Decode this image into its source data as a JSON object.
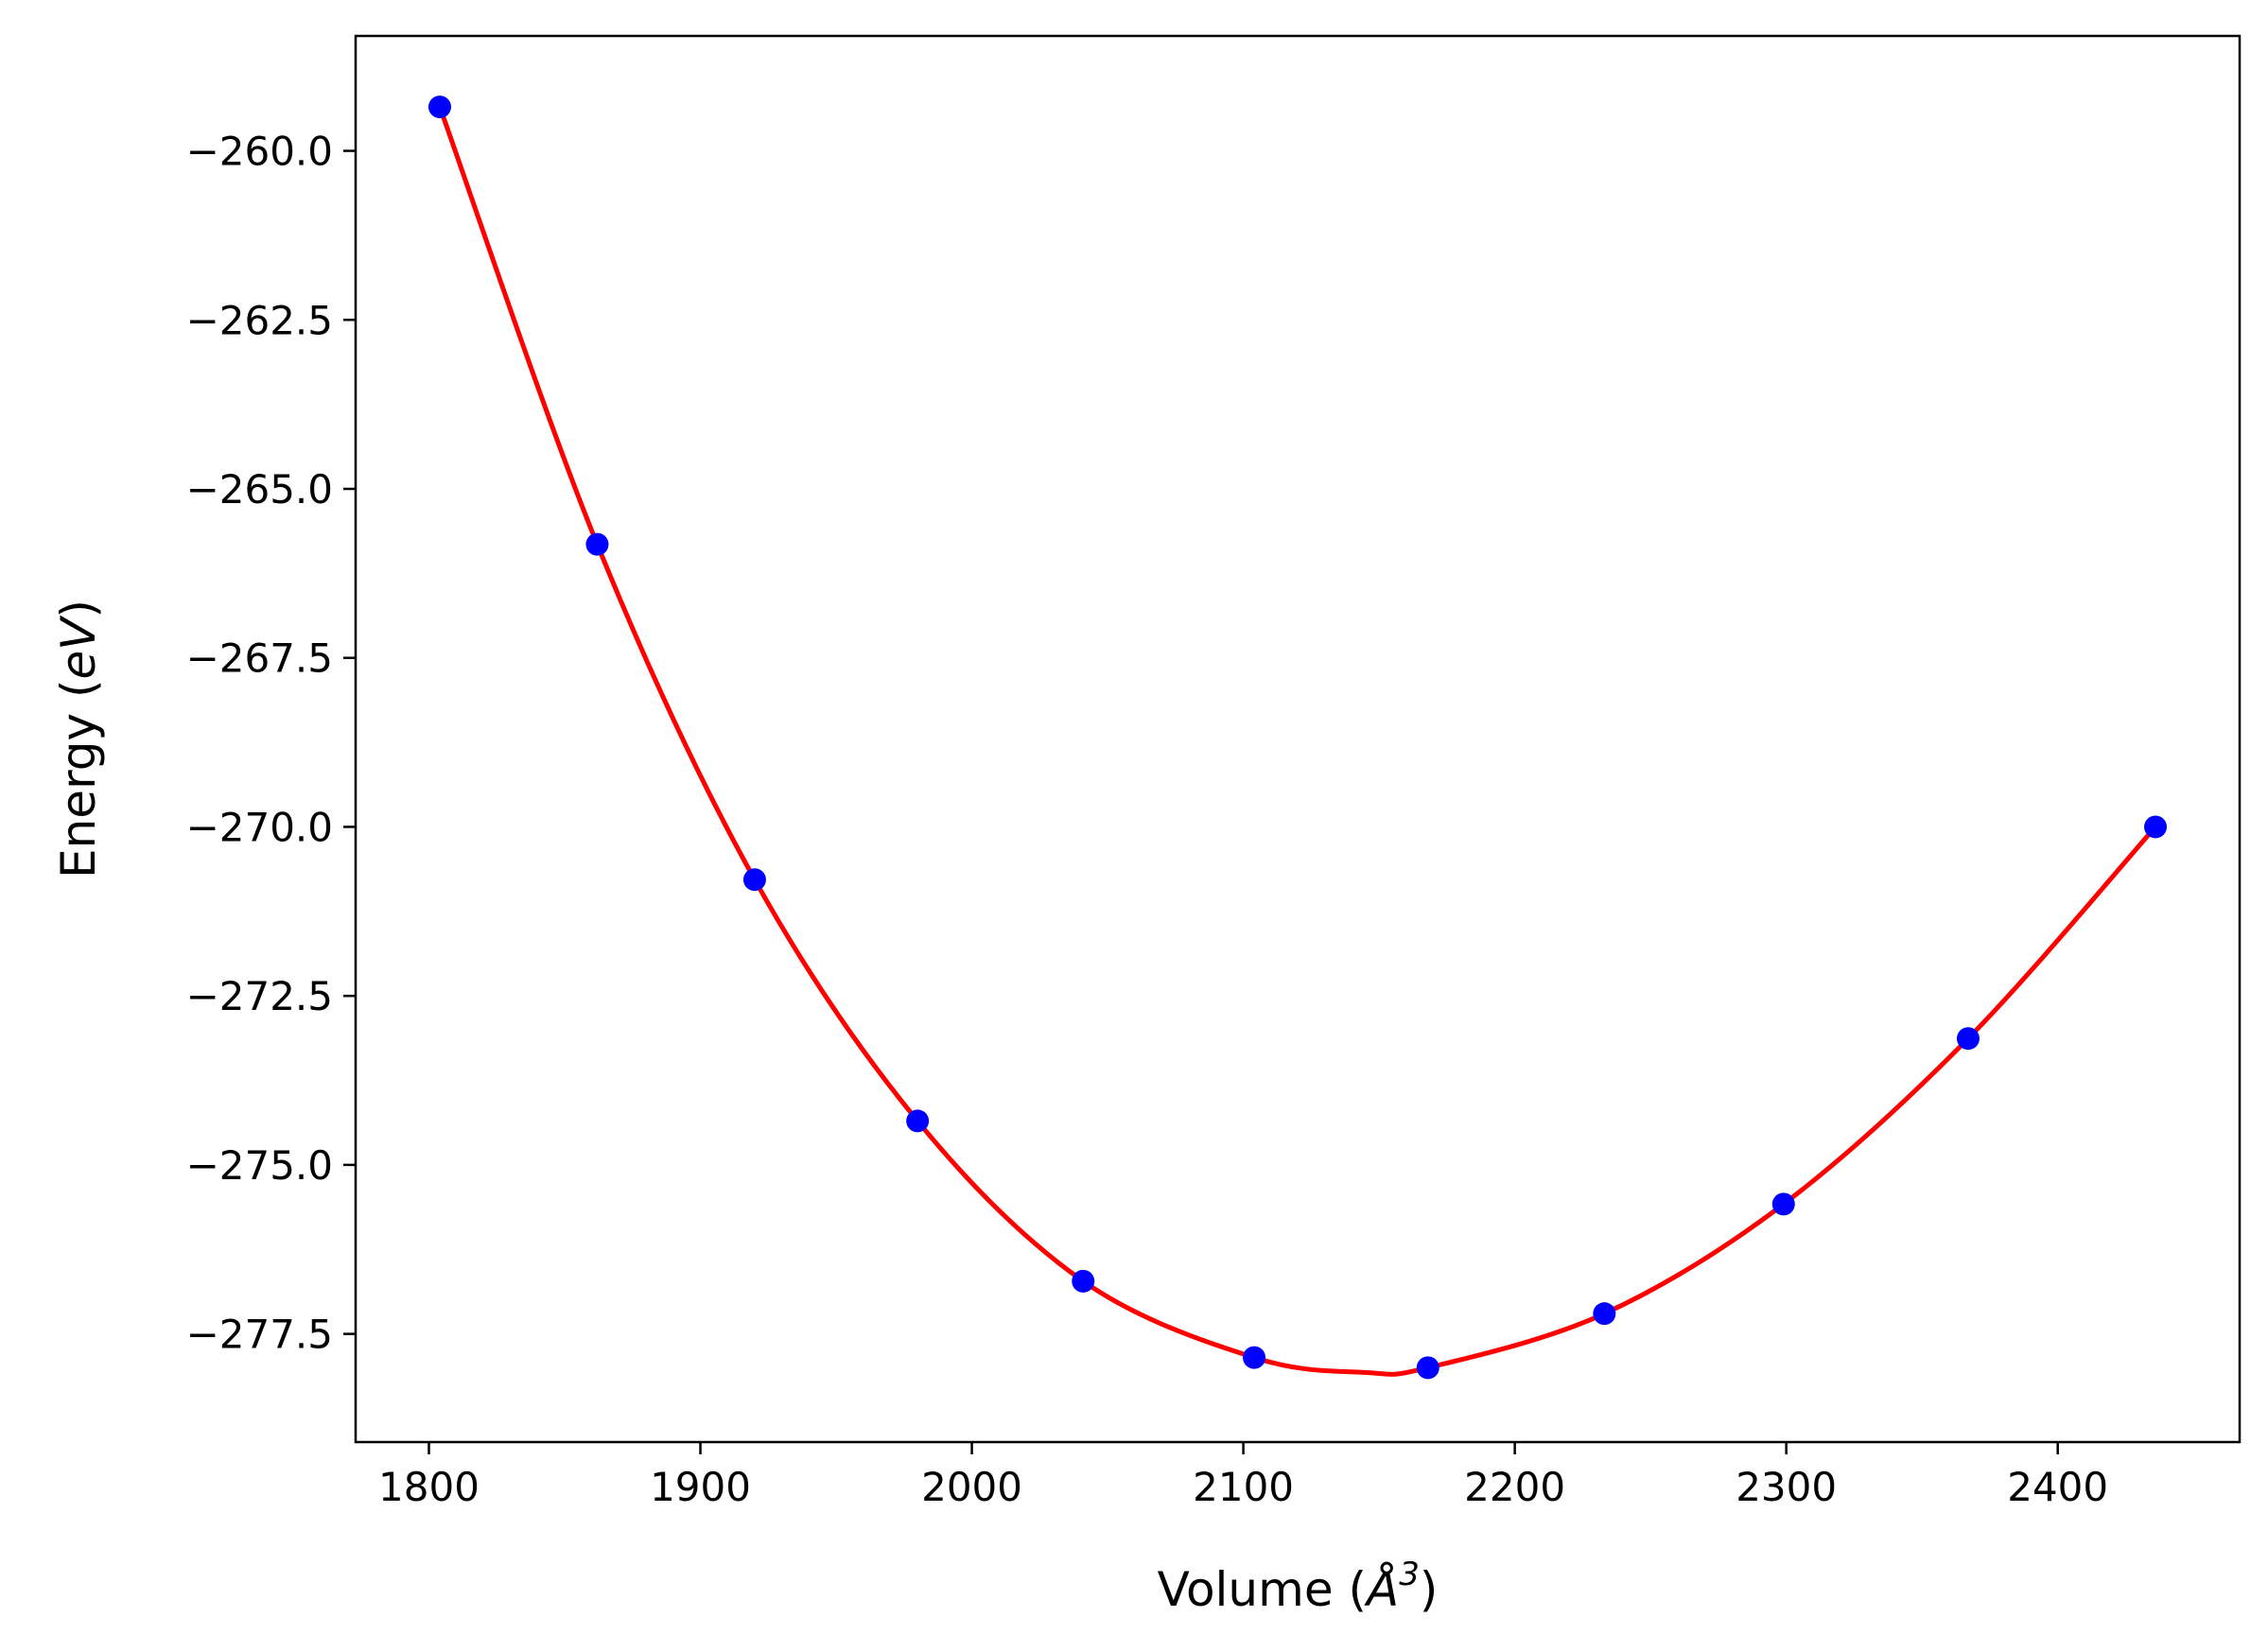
{
  "chart_data": {
    "type": "scatter",
    "title": "",
    "xlabel": "Volume (Å^3)",
    "xlabel_parts": {
      "pre": "Volume (",
      "unit": "Å",
      "exp": "3",
      "post": ")"
    },
    "ylabel": "Energy (eV)",
    "ylabel_parts": {
      "pre": "Energy (",
      "unit": "eV",
      "post": ")"
    },
    "xlim": [
      1773,
      2467
    ],
    "ylim": [
      -279.1,
      -258.3
    ],
    "xticks": [
      1800,
      1900,
      2000,
      2100,
      2200,
      2300,
      2400
    ],
    "xtick_labels": [
      "1800",
      "1900",
      "2000",
      "2100",
      "2200",
      "2300",
      "2400"
    ],
    "yticks": [
      -260.0,
      -262.5,
      -265.0,
      -267.5,
      -270.0,
      -272.5,
      -275.0,
      -277.5
    ],
    "ytick_labels": [
      "−260.0",
      "−262.5",
      "−265.0",
      "−267.5",
      "−270.0",
      "−272.5",
      "−275.0",
      "−277.5"
    ],
    "grid": false,
    "series": [
      {
        "name": "data",
        "kind": "points",
        "color": "#0000ff",
        "x": [
          1804,
          1862,
          1920,
          1980,
          2041,
          2104,
          2168,
          2233,
          2299,
          2367,
          2436
        ],
        "y": [
          -259.35,
          -265.82,
          -270.78,
          -274.35,
          -276.72,
          -277.85,
          -278.0,
          -277.2,
          -275.58,
          -273.13,
          -270.0
        ]
      },
      {
        "name": "fit",
        "kind": "line",
        "color": "#ff0000",
        "x": [
          1804,
          1862,
          1920,
          1980,
          2041,
          2104,
          2145,
          2168,
          2233,
          2299,
          2367,
          2436
        ],
        "y": [
          -259.35,
          -265.82,
          -270.78,
          -274.35,
          -276.72,
          -277.85,
          -278.07,
          -278.0,
          -277.2,
          -275.58,
          -273.13,
          -270.0
        ]
      }
    ]
  }
}
